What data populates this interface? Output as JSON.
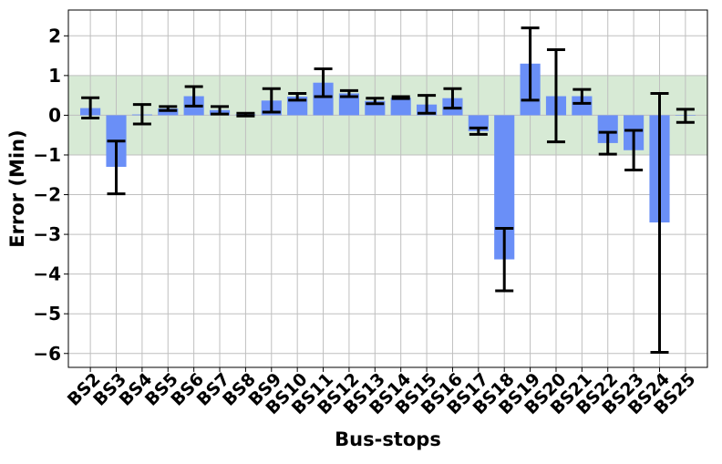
{
  "chart_data": {
    "type": "bar",
    "title": "",
    "xlabel": "Bus-stops",
    "ylabel": "Error (Min)",
    "categories": [
      "BS2",
      "BS3",
      "BS4",
      "BS5",
      "BS6",
      "BS7",
      "BS8",
      "BS9",
      "BS10",
      "BS11",
      "BS12",
      "BS13",
      "BS14",
      "BS15",
      "BS16",
      "BS17",
      "BS18",
      "BS19",
      "BS20",
      "BS21",
      "BS22",
      "BS23",
      "BS24",
      "BS25"
    ],
    "values": [
      0.18,
      -1.3,
      0.02,
      0.17,
      0.48,
      0.13,
      0.02,
      0.37,
      0.47,
      0.82,
      0.55,
      0.36,
      0.44,
      0.27,
      0.43,
      -0.4,
      -3.63,
      1.3,
      0.48,
      0.48,
      -0.7,
      -0.88,
      -2.7,
      -0.01
    ],
    "errors": [
      [
        -0.07,
        0.44
      ],
      [
        -1.98,
        -0.65
      ],
      [
        -0.22,
        0.27
      ],
      [
        0.12,
        0.22
      ],
      [
        0.23,
        0.72
      ],
      [
        0.03,
        0.22
      ],
      [
        -0.02,
        0.05
      ],
      [
        0.08,
        0.67
      ],
      [
        0.38,
        0.55
      ],
      [
        0.47,
        1.17
      ],
      [
        0.47,
        0.62
      ],
      [
        0.29,
        0.43
      ],
      [
        0.42,
        0.47
      ],
      [
        0.05,
        0.5
      ],
      [
        0.18,
        0.67
      ],
      [
        -0.48,
        -0.32
      ],
      [
        -4.42,
        -2.85
      ],
      [
        0.38,
        2.2
      ],
      [
        -0.67,
        1.65
      ],
      [
        0.3,
        0.65
      ],
      [
        -0.98,
        -0.43
      ],
      [
        -1.38,
        -0.38
      ],
      [
        -5.97,
        0.55
      ],
      [
        -0.18,
        0.15
      ]
    ],
    "yticks": [
      -6,
      -5,
      -4,
      -3,
      -2,
      -1,
      0,
      1,
      2
    ],
    "ytick_labels": [
      "−6",
      "−5",
      "−4",
      "−3",
      "−2",
      "−1",
      "0",
      "1",
      "2"
    ],
    "ylim": [
      -6.35,
      2.65
    ],
    "band": [
      -1,
      1
    ],
    "grid": true,
    "colors": {
      "bar": "#6a8ff7",
      "band": "#d7ead5",
      "grid": "#bfbfbf",
      "errorbar": "#000000",
      "axis": "#000000"
    }
  }
}
